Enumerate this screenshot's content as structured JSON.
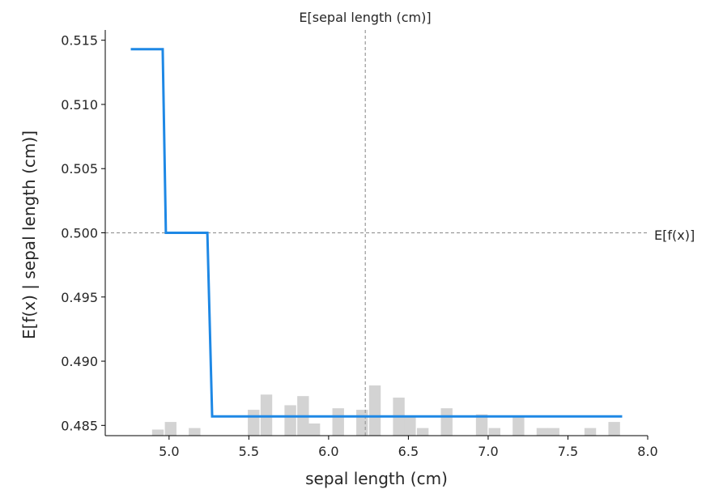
{
  "chart_data": {
    "type": "line",
    "title": "",
    "xlabel": "sepal length (cm)",
    "ylabel": "E[f(x) | sepal length (cm)]",
    "xlim": [
      4.6,
      8.0
    ],
    "ylim": [
      0.4842,
      0.5158
    ],
    "x_ticks": [
      "5.0",
      "5.5",
      "6.0",
      "6.5",
      "7.0",
      "7.5",
      "8.0"
    ],
    "y_ticks": [
      "0.485",
      "0.490",
      "0.495",
      "0.500",
      "0.505",
      "0.510",
      "0.515"
    ],
    "grid": false,
    "line_color": "#1e88e5",
    "series": [
      {
        "x": [
          4.76,
          4.96,
          4.98,
          5.24,
          5.27,
          7.84
        ],
        "y": [
          0.5143,
          0.5143,
          0.5,
          0.5,
          0.4857,
          0.4857
        ]
      }
    ],
    "reference_lines": {
      "expected_value_y": 0.5,
      "expected_value_label": "E[f(x)]",
      "feature_mean_x": 6.23,
      "feature_mean_label": "E[sepal length (cm)]",
      "line_color": "#999999"
    },
    "histogram": {
      "bin_width": 0.073,
      "color": "#d3d3d3",
      "bins": [
        {
          "x": 4.93,
          "count": 4
        },
        {
          "x": 5.01,
          "count": 9
        },
        {
          "x": 5.16,
          "count": 5
        },
        {
          "x": 5.53,
          "count": 17
        },
        {
          "x": 5.61,
          "count": 27
        },
        {
          "x": 5.76,
          "count": 20
        },
        {
          "x": 5.84,
          "count": 26
        },
        {
          "x": 5.91,
          "count": 8
        },
        {
          "x": 6.06,
          "count": 18
        },
        {
          "x": 6.21,
          "count": 17
        },
        {
          "x": 6.29,
          "count": 33
        },
        {
          "x": 6.44,
          "count": 25
        },
        {
          "x": 6.51,
          "count": 13
        },
        {
          "x": 6.59,
          "count": 5
        },
        {
          "x": 6.74,
          "count": 18
        },
        {
          "x": 6.96,
          "count": 14
        },
        {
          "x": 7.04,
          "count": 5
        },
        {
          "x": 7.19,
          "count": 13
        },
        {
          "x": 7.34,
          "count": 5
        },
        {
          "x": 7.41,
          "count": 5
        },
        {
          "x": 7.64,
          "count": 5
        },
        {
          "x": 7.79,
          "count": 9
        }
      ]
    }
  }
}
